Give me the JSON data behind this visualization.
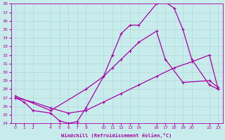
{
  "xlabel": "Windchill (Refroidissement éolien,°C)",
  "background_color": "#c8ecec",
  "grid_color": "#b0d8d8",
  "line_color": "#aa00aa",
  "xlim": [
    -0.5,
    23.5
  ],
  "ylim": [
    24,
    38
  ],
  "xticks": [
    0,
    1,
    2,
    4,
    5,
    6,
    7,
    8,
    10,
    11,
    12,
    13,
    14,
    16,
    17,
    18,
    19,
    20,
    22,
    23
  ],
  "yticks": [
    24,
    25,
    26,
    27,
    28,
    29,
    30,
    31,
    32,
    33,
    34,
    35,
    36,
    37,
    38
  ],
  "curve1_x": [
    0,
    1,
    2,
    4,
    5,
    6,
    7,
    8,
    10,
    11,
    12,
    13,
    14,
    16,
    17,
    18,
    19,
    20,
    22,
    23
  ],
  "curve1_y": [
    27.0,
    26.5,
    25.5,
    25.2,
    24.3,
    24.0,
    24.2,
    25.8,
    29.5,
    32.0,
    34.5,
    35.5,
    35.5,
    38.0,
    38.2,
    37.5,
    35.0,
    31.5,
    28.5,
    28.0
  ],
  "curve2_x": [
    0,
    4,
    8,
    10,
    11,
    12,
    13,
    14,
    16,
    17,
    19,
    22,
    23
  ],
  "curve2_y": [
    27.2,
    25.5,
    28.0,
    29.5,
    30.5,
    31.5,
    32.5,
    33.5,
    34.8,
    31.5,
    28.8,
    29.0,
    28.2
  ],
  "curve3_x": [
    0,
    2,
    4,
    6,
    8,
    10,
    12,
    14,
    16,
    18,
    20,
    22,
    23
  ],
  "curve3_y": [
    27.0,
    26.5,
    25.8,
    25.2,
    25.5,
    26.5,
    27.5,
    28.5,
    29.5,
    30.5,
    31.2,
    32.0,
    28.0
  ]
}
